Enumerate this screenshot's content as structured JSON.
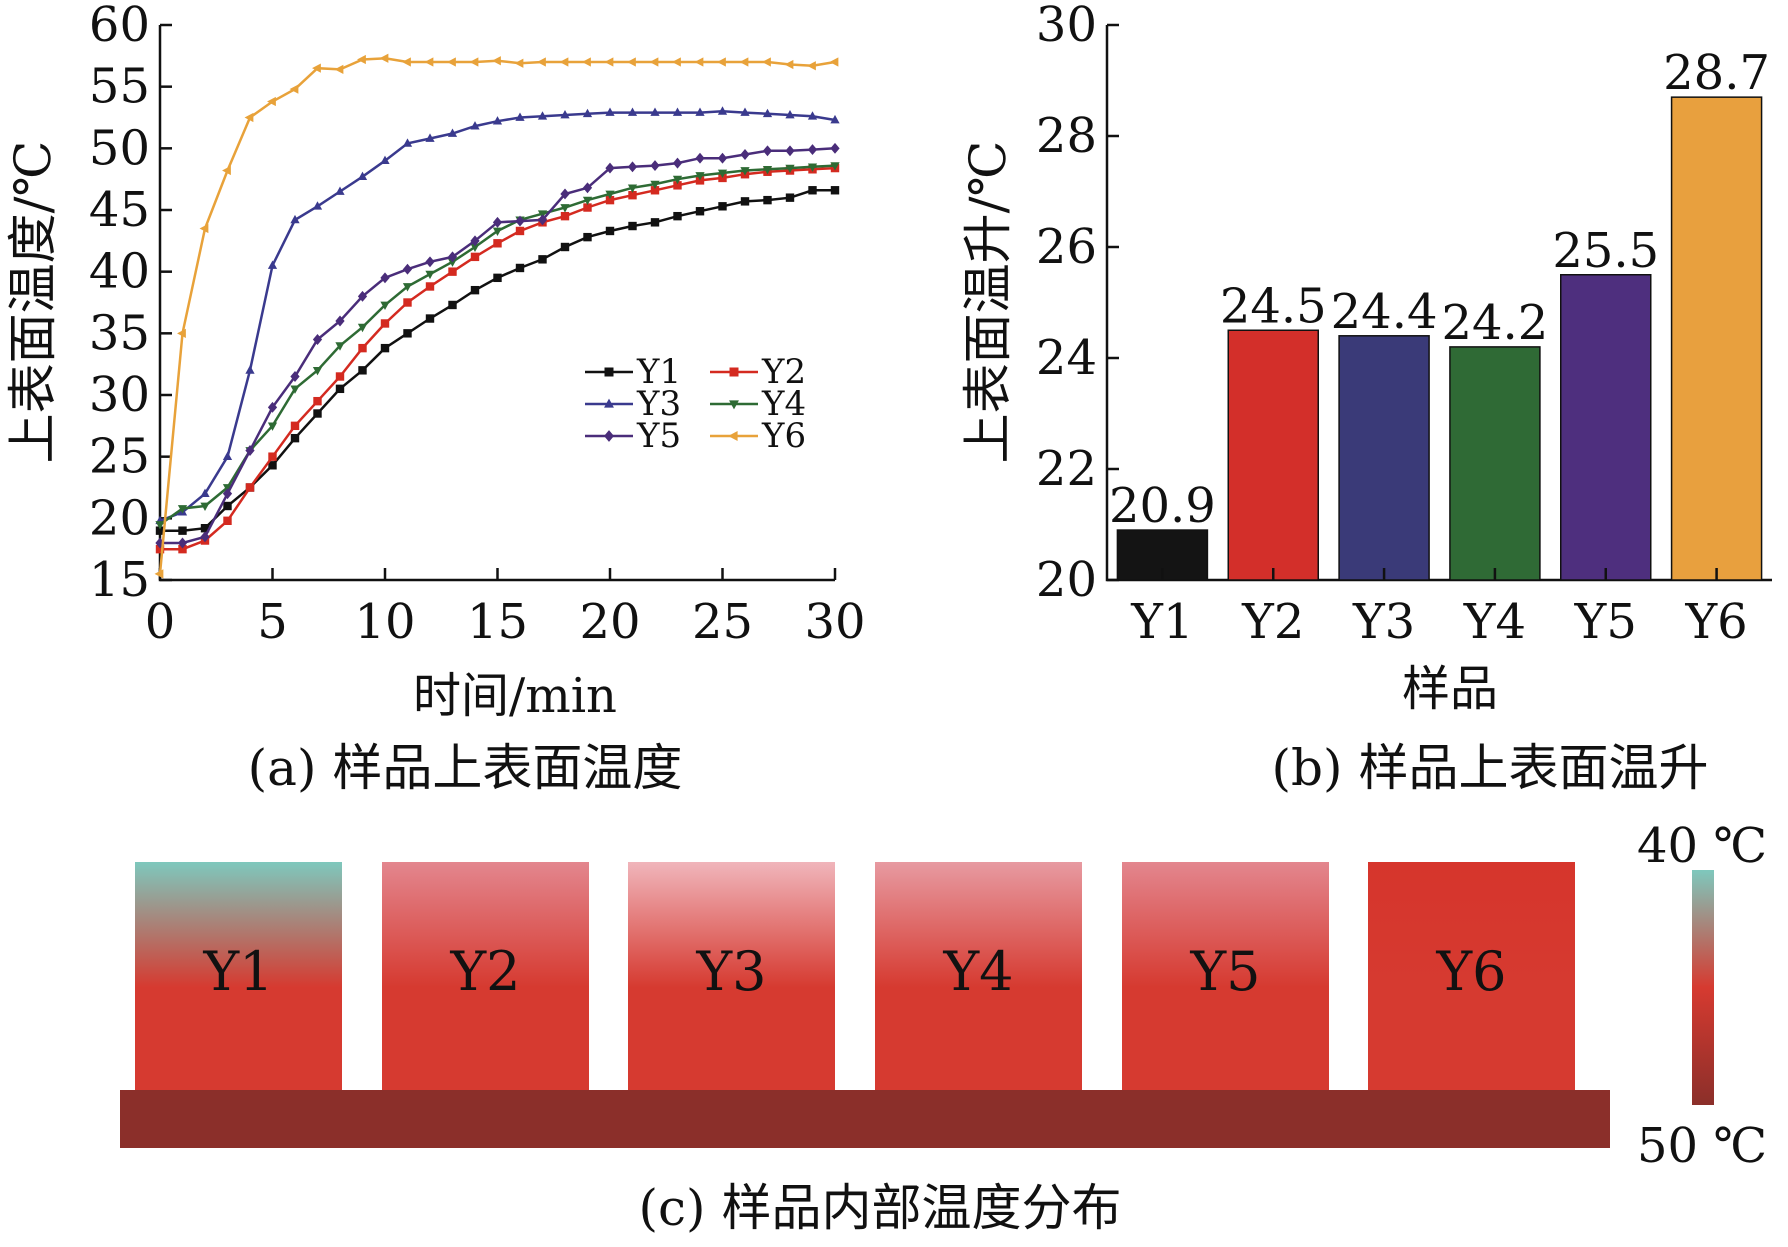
{
  "chart_data": [
    {
      "id": "a",
      "type": "line",
      "caption": "(a) 样品上表面温度",
      "xlabel": "时间/min",
      "ylabel": "上表面温度/℃",
      "xlim": [
        0,
        30
      ],
      "ylim": [
        15,
        60
      ],
      "xticks": [
        0,
        5,
        10,
        15,
        20,
        25,
        30
      ],
      "yticks": [
        15,
        20,
        25,
        30,
        35,
        40,
        45,
        50,
        55,
        60
      ],
      "legend_position": "lower-right",
      "x": [
        0,
        1,
        2,
        3,
        4,
        5,
        6,
        7,
        8,
        9,
        10,
        11,
        12,
        13,
        14,
        15,
        16,
        17,
        18,
        19,
        20,
        21,
        22,
        23,
        24,
        25,
        26,
        27,
        28,
        29,
        30
      ],
      "series": [
        {
          "name": "Y1",
          "color": "#111111",
          "marker": "square",
          "values": [
            19.0,
            19.0,
            19.2,
            21.0,
            22.5,
            24.3,
            26.5,
            28.5,
            30.5,
            32.0,
            33.8,
            35.0,
            36.2,
            37.3,
            38.5,
            39.5,
            40.3,
            41.0,
            42.0,
            42.8,
            43.3,
            43.7,
            44.0,
            44.5,
            44.9,
            45.3,
            45.7,
            45.8,
            46.0,
            46.6,
            46.6
          ]
        },
        {
          "name": "Y2",
          "color": "#d42a20",
          "marker": "square",
          "values": [
            17.5,
            17.5,
            18.2,
            19.8,
            22.5,
            25.0,
            27.5,
            29.5,
            31.5,
            33.8,
            35.8,
            37.5,
            38.8,
            40.0,
            41.2,
            42.3,
            43.3,
            44.0,
            44.5,
            45.2,
            45.8,
            46.2,
            46.6,
            47.0,
            47.4,
            47.6,
            47.9,
            48.1,
            48.2,
            48.3,
            48.4
          ]
        },
        {
          "name": "Y3",
          "color": "#3a3a8e",
          "marker": "triangle-up",
          "values": [
            19.8,
            20.5,
            22.0,
            25.0,
            32.0,
            40.5,
            44.2,
            45.3,
            46.5,
            47.7,
            49.0,
            50.4,
            50.8,
            51.2,
            51.8,
            52.2,
            52.5,
            52.6,
            52.7,
            52.8,
            52.9,
            52.9,
            52.9,
            52.9,
            52.9,
            53.0,
            52.9,
            52.8,
            52.7,
            52.6,
            52.3
          ]
        },
        {
          "name": "Y4",
          "color": "#2e6b34",
          "marker": "triangle-down",
          "values": [
            19.5,
            20.8,
            21.0,
            22.5,
            25.5,
            27.5,
            30.5,
            32.0,
            34.0,
            35.5,
            37.3,
            38.8,
            39.8,
            40.8,
            42.0,
            43.3,
            44.2,
            44.7,
            45.2,
            45.8,
            46.3,
            46.8,
            47.1,
            47.5,
            47.8,
            48.0,
            48.2,
            48.3,
            48.4,
            48.5,
            48.6
          ]
        },
        {
          "name": "Y5",
          "color": "#4a2d7a",
          "marker": "diamond",
          "values": [
            18.0,
            18.0,
            18.5,
            22.0,
            25.5,
            29.0,
            31.5,
            34.5,
            36.0,
            38.0,
            39.5,
            40.2,
            40.8,
            41.2,
            42.5,
            44.0,
            44.1,
            44.2,
            46.3,
            46.8,
            48.4,
            48.5,
            48.6,
            48.8,
            49.2,
            49.2,
            49.5,
            49.8,
            49.8,
            49.9,
            50.0
          ]
        },
        {
          "name": "Y6",
          "color": "#e8a23a",
          "marker": "triangle-left",
          "values": [
            15.5,
            35.0,
            43.5,
            48.2,
            52.5,
            53.8,
            54.8,
            56.5,
            56.4,
            57.2,
            57.3,
            57.0,
            57.0,
            57.0,
            57.0,
            57.1,
            56.9,
            57.0,
            57.0,
            57.0,
            57.0,
            57.0,
            57.0,
            57.0,
            57.0,
            57.0,
            57.0,
            57.0,
            56.8,
            56.7,
            57.0
          ]
        }
      ]
    },
    {
      "id": "b",
      "type": "bar",
      "caption": "(b) 样品上表面温升",
      "xlabel": "样品",
      "ylabel": "上表面温升/℃",
      "ylim": [
        20,
        30
      ],
      "yticks": [
        20,
        22,
        24,
        26,
        28,
        30
      ],
      "categories": [
        "Y1",
        "Y2",
        "Y3",
        "Y4",
        "Y5",
        "Y6"
      ],
      "values": [
        20.9,
        24.5,
        24.4,
        24.2,
        25.5,
        28.7
      ],
      "value_labels": [
        "20.9",
        "24.5",
        "24.4",
        "24.2",
        "25.5",
        "28.7"
      ],
      "colors": [
        "#141414",
        "#d32f2a",
        "#3a3a78",
        "#2f6a35",
        "#4e2f7e",
        "#e8a03e"
      ]
    }
  ],
  "panel_c": {
    "caption": "(c) 样品内部温度分布",
    "samples": [
      "Y1",
      "Y2",
      "Y3",
      "Y4",
      "Y5",
      "Y6"
    ],
    "top_colors": [
      "#7ec8bd",
      "#e3868e",
      "#f0b5bb",
      "#e79aa1",
      "#e3868e",
      "#d6352c"
    ],
    "bottom_color": "#d63a30",
    "base_color": "#8b2f2a",
    "colorbar": {
      "max_label": "40 ℃",
      "min_label": "50 ℃",
      "top_color": "#7ec8bd",
      "mid_color": "#d63a30",
      "bottom_color": "#8b2f2a"
    }
  }
}
